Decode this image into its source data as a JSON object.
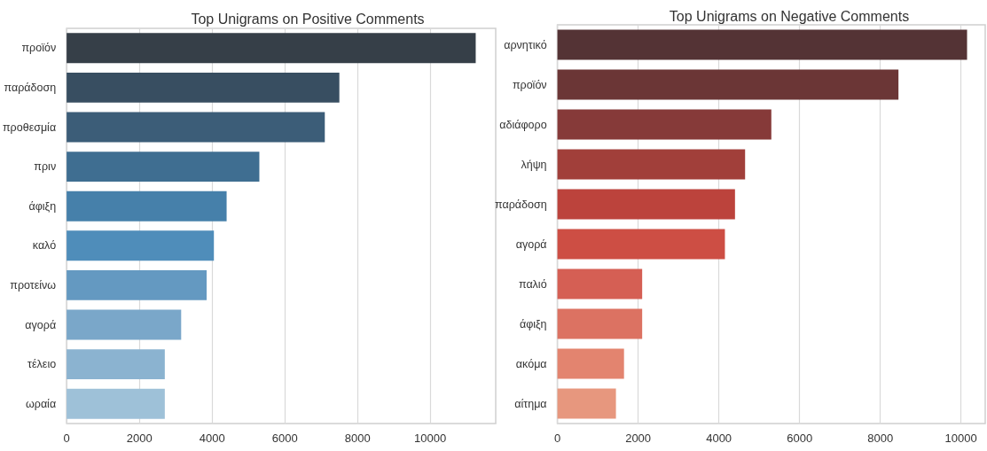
{
  "chart_data": [
    {
      "type": "bar",
      "orientation": "horizontal",
      "title": "Top Unigrams on Positive Comments",
      "categories": [
        "προϊόν",
        "παράδοση",
        "προθεσμία",
        "πριν",
        "άφιξη",
        "καλό",
        "προτείνω",
        "αγορά",
        "τέλειο",
        "ωραία"
      ],
      "values": [
        11250,
        7500,
        7100,
        5300,
        4400,
        4050,
        3850,
        3150,
        2700,
        2700
      ],
      "colors": [
        "#363f48",
        "#384e61",
        "#3c5d78",
        "#3f6e91",
        "#4680aa",
        "#4f8dba",
        "#6499c1",
        "#7aa7c9",
        "#8bb3d0",
        "#9ec1d8"
      ],
      "xlim": [
        0,
        11800
      ],
      "xticks": [
        0,
        2000,
        4000,
        6000,
        8000,
        10000
      ],
      "grid": "x"
    },
    {
      "type": "bar",
      "orientation": "horizontal",
      "title": "Top Unigrams on Negative Comments",
      "categories": [
        "αρνητικό",
        "προϊόν",
        "αδιάφορο",
        "λήψη",
        "παράδοση",
        "αγορά",
        "παλιό",
        "άφιξη",
        "ακόμα",
        "αίτημα"
      ],
      "values": [
        10150,
        8450,
        5300,
        4650,
        4400,
        4150,
        2100,
        2100,
        1650,
        1450
      ],
      "colors": [
        "#543335",
        "#6b3636",
        "#863a39",
        "#a13f3a",
        "#bc433c",
        "#cd4e44",
        "#d55f54",
        "#dc7262",
        "#e3846f",
        "#e7977e"
      ],
      "xlim": [
        0,
        10600
      ],
      "xticks": [
        0,
        2000,
        4000,
        6000,
        8000,
        10000
      ],
      "grid": "x"
    }
  ]
}
